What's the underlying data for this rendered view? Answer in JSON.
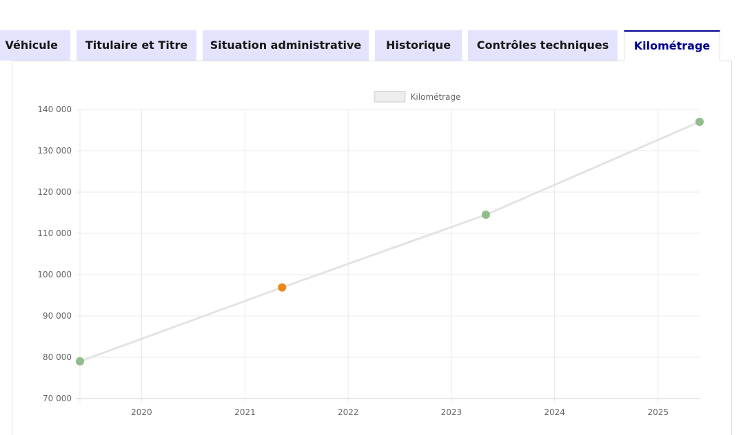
{
  "tabs": [
    {
      "label": "Véhicule",
      "active": false
    },
    {
      "label": "Titulaire et Titre",
      "active": false
    },
    {
      "label": "Situation administrative",
      "active": false
    },
    {
      "label": "Historique",
      "active": false
    },
    {
      "label": "Contrôles techniques",
      "active": false
    },
    {
      "label": "Kilométrage",
      "active": true
    }
  ],
  "colors": {
    "tab_bg": "#e3e3fd",
    "tab_active_text": "#000091",
    "point_ok": "#8fbd8b",
    "point_warning": "#e8891a",
    "line": "#e3e3e3"
  },
  "chart_data": {
    "type": "line",
    "title": "",
    "xlabel": "",
    "ylabel": "",
    "legend": {
      "label": "Kilométrage",
      "placement": "top-center"
    },
    "ylim": [
      70000,
      140000
    ],
    "yticks": [
      70000,
      80000,
      90000,
      100000,
      110000,
      120000,
      130000,
      140000
    ],
    "ytick_labels": [
      "70 000",
      "80 000",
      "90 000",
      "100 000",
      "110 000",
      "120 000",
      "130 000",
      "140 000"
    ],
    "xlim": [
      "2019-05-28",
      "2025-05-28"
    ],
    "xticks": [
      "2020-01-01",
      "2021-01-01",
      "2022-01-01",
      "2023-01-01",
      "2024-01-01",
      "2025-01-01"
    ],
    "xtick_labels": [
      "2020",
      "2021",
      "2022",
      "2023",
      "2024",
      "2025"
    ],
    "grid": true,
    "series": [
      {
        "name": "Kilométrage",
        "points": [
          {
            "date": "2019-05-28",
            "km": 79000,
            "status": "ok"
          },
          {
            "date": "2021-05-12",
            "km": 96900,
            "status": "warning"
          },
          {
            "date": "2023-05-03",
            "km": 114500,
            "status": "ok"
          },
          {
            "date": "2025-05-28",
            "km": 137000,
            "status": "ok"
          }
        ]
      }
    ]
  }
}
